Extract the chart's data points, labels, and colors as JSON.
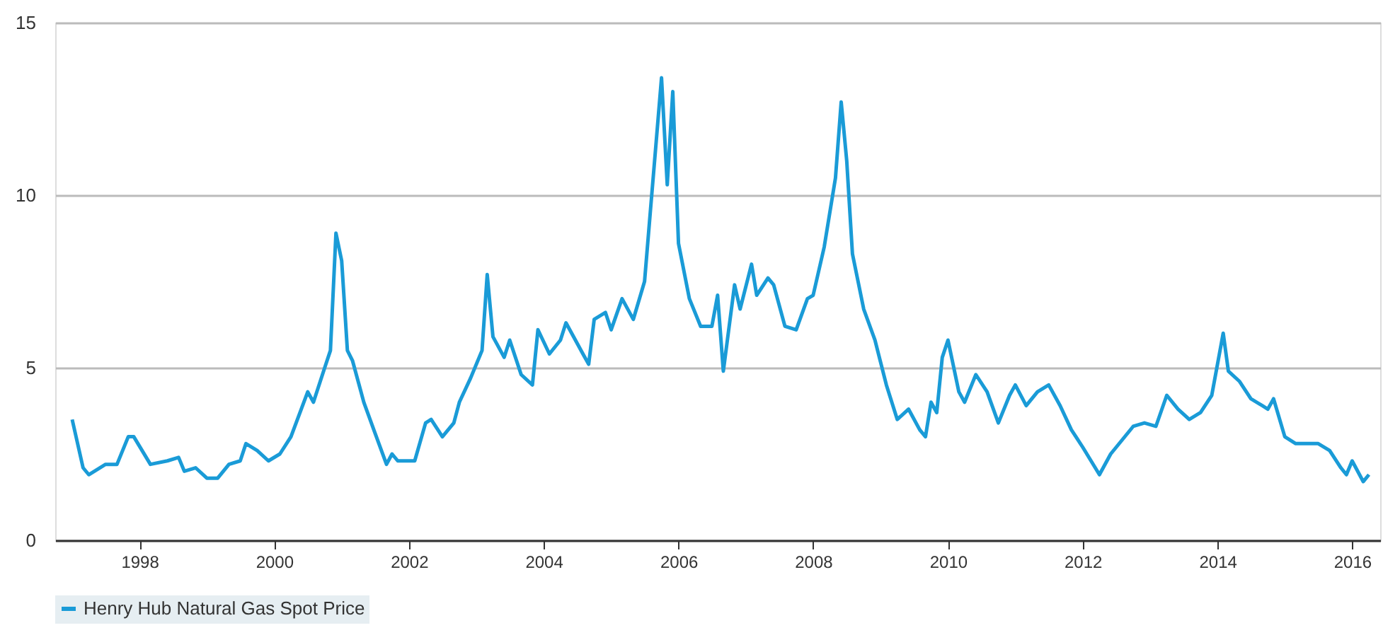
{
  "chart_data": {
    "type": "line",
    "x": [
      "1997-01",
      "1997-03",
      "1997-04",
      "1997-07",
      "1997-09",
      "1997-11",
      "1997-12",
      "1998-03",
      "1998-06",
      "1998-08",
      "1998-09",
      "1998-11",
      "1999-01",
      "1999-03",
      "1999-05",
      "1999-07",
      "1999-08",
      "1999-10",
      "1999-12",
      "2000-02",
      "2000-04",
      "2000-07",
      "2000-08",
      "2000-10",
      "2000-11",
      "2000-12",
      "2001-01",
      "2001-02",
      "2001-03",
      "2001-05",
      "2001-07",
      "2001-09",
      "2001-10",
      "2001-11",
      "2002-02",
      "2002-04",
      "2002-05",
      "2002-07",
      "2002-09",
      "2002-10",
      "2002-12",
      "2003-02",
      "2003-03",
      "2003-04",
      "2003-06",
      "2003-07",
      "2003-09",
      "2003-11",
      "2003-12",
      "2004-02",
      "2004-04",
      "2004-05",
      "2004-08",
      "2004-09",
      "2004-10",
      "2004-12",
      "2005-01",
      "2005-03",
      "2005-05",
      "2005-07",
      "2005-08",
      "2005-10",
      "2005-11",
      "2005-12",
      "2006-01",
      "2006-03",
      "2006-05",
      "2006-07",
      "2006-08",
      "2006-09",
      "2006-11",
      "2006-12",
      "2007-02",
      "2007-03",
      "2007-05",
      "2007-06",
      "2007-08",
      "2007-10",
      "2007-12",
      "2008-01",
      "2008-03",
      "2008-05",
      "2008-06",
      "2008-07",
      "2008-08",
      "2008-10",
      "2008-12",
      "2009-02",
      "2009-04",
      "2009-06",
      "2009-08",
      "2009-09",
      "2009-10",
      "2009-11",
      "2009-12",
      "2010-01",
      "2010-03",
      "2010-04",
      "2010-06",
      "2010-08",
      "2010-10",
      "2010-12",
      "2011-01",
      "2011-03",
      "2011-05",
      "2011-07",
      "2011-09",
      "2011-11",
      "2012-01",
      "2012-04",
      "2012-06",
      "2012-08",
      "2012-10",
      "2012-12",
      "2013-02",
      "2013-04",
      "2013-06",
      "2013-08",
      "2013-10",
      "2013-12",
      "2014-02",
      "2014-03",
      "2014-05",
      "2014-07",
      "2014-09",
      "2014-10",
      "2014-11",
      "2015-01",
      "2015-03",
      "2015-05",
      "2015-07",
      "2015-09",
      "2015-11",
      "2015-12",
      "2016-01",
      "2016-03",
      "2016-04"
    ],
    "series": [
      {
        "name": "Henry Hub Natural Gas Spot Price",
        "color": "#1a9bd7",
        "values": [
          3.5,
          2.1,
          1.9,
          2.2,
          2.2,
          3.0,
          3.0,
          2.2,
          2.3,
          2.4,
          2.0,
          2.1,
          1.8,
          1.8,
          2.2,
          2.3,
          2.8,
          2.6,
          2.3,
          2.5,
          3.0,
          4.3,
          4.0,
          5.0,
          5.5,
          8.9,
          8.1,
          5.5,
          5.2,
          4.0,
          3.1,
          2.2,
          2.5,
          2.3,
          2.3,
          3.4,
          3.5,
          3.0,
          3.4,
          4.0,
          4.7,
          5.5,
          7.7,
          5.9,
          5.3,
          5.8,
          4.8,
          4.5,
          6.1,
          5.4,
          5.8,
          6.3,
          5.4,
          5.1,
          6.4,
          6.6,
          6.1,
          7.0,
          6.4,
          7.5,
          9.5,
          13.4,
          10.3,
          13.0,
          8.6,
          7.0,
          6.2,
          6.2,
          7.1,
          4.9,
          7.4,
          6.7,
          8.0,
          7.1,
          7.6,
          7.4,
          6.2,
          6.1,
          7.0,
          7.1,
          8.5,
          10.5,
          12.7,
          11.0,
          8.3,
          6.7,
          5.8,
          4.5,
          3.5,
          3.8,
          3.2,
          3.0,
          4.0,
          3.7,
          5.3,
          5.8,
          4.3,
          4.0,
          4.8,
          4.3,
          3.4,
          4.2,
          4.5,
          3.9,
          4.3,
          4.5,
          3.9,
          3.2,
          2.7,
          1.9,
          2.5,
          2.9,
          3.3,
          3.4,
          3.3,
          4.2,
          3.8,
          3.5,
          3.7,
          4.2,
          6.0,
          4.9,
          4.6,
          4.1,
          3.9,
          3.8,
          4.1,
          3.0,
          2.8,
          2.8,
          2.8,
          2.6,
          2.1,
          1.9,
          2.3,
          1.7,
          1.9
        ]
      }
    ],
    "xlim": [
      "1996-10",
      "2016-06"
    ],
    "xticks": [
      {
        "value": "1998",
        "label": "1998"
      },
      {
        "value": "2000",
        "label": "2000"
      },
      {
        "value": "2002",
        "label": "2002"
      },
      {
        "value": "2004",
        "label": "2004"
      },
      {
        "value": "2006",
        "label": "2006"
      },
      {
        "value": "2008",
        "label": "2008"
      },
      {
        "value": "2010",
        "label": "2010"
      },
      {
        "value": "2012",
        "label": "2012"
      },
      {
        "value": "2014",
        "label": "2014"
      },
      {
        "value": "2016",
        "label": "2016"
      }
    ],
    "ylim": [
      0,
      15
    ],
    "yticks": [
      0,
      5,
      10,
      15
    ],
    "grid": "y",
    "legend": "bottom",
    "marker": "none",
    "line_style": "solid"
  }
}
